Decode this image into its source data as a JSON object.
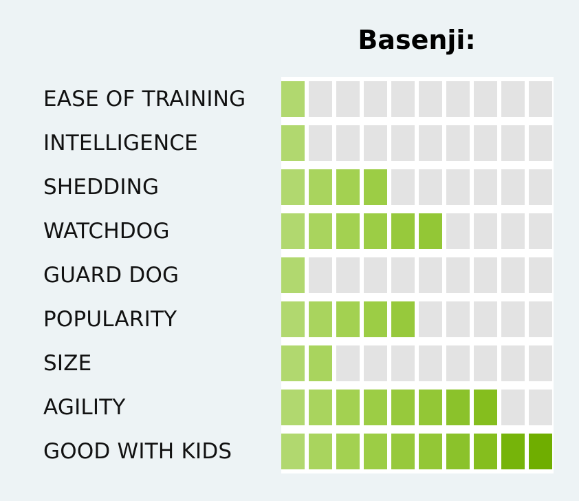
{
  "chart_data": {
    "type": "table",
    "title": "Basenji:",
    "max_score": 10,
    "categories": [
      "EASE OF TRAINING",
      "INTELLIGENCE",
      "SHEDDING",
      "WATCHDOG",
      "GUARD DOG",
      "POPULARITY",
      "SIZE",
      "AGILITY",
      "GOOD WITH KIDS"
    ],
    "values": [
      1,
      1,
      4,
      6,
      1,
      5,
      2,
      8,
      10
    ],
    "colors": {
      "empty": "#e3e3e3",
      "filled_ramp": [
        "#b1d86f",
        "#a9d45e",
        "#a3d151",
        "#9ccd45",
        "#97c93c",
        "#93c736",
        "#8bc22b",
        "#85be1e",
        "#76b40a",
        "#6fae00"
      ]
    }
  }
}
